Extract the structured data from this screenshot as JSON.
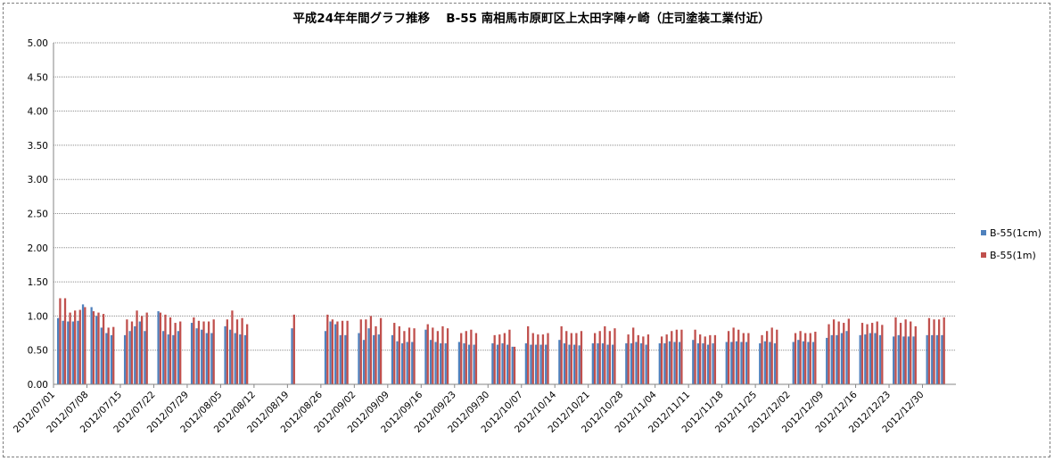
{
  "chart_data": {
    "type": "bar",
    "title": "平成24年年間グラフ推移　 B-55 南相馬市原町区上太田字陣ヶ崎（庄司塗装工業付近）",
    "xlabel": "",
    "ylabel": "",
    "ylim": [
      0,
      5
    ],
    "yticks": [
      "0.00",
      "0.50",
      "1.00",
      "1.50",
      "2.00",
      "2.50",
      "3.00",
      "3.50",
      "4.00",
      "4.50",
      "5.00"
    ],
    "grid": "horizontal dotted",
    "legend_position": "right",
    "x_tick_labels": [
      "2012/07/01",
      "2012/07/08",
      "2012/07/15",
      "2012/07/22",
      "2012/07/29",
      "2012/08/05",
      "2012/08/12",
      "2012/08/19",
      "2012/08/26",
      "2012/09/02",
      "2012/09/09",
      "2012/09/16",
      "2012/09/23",
      "2012/09/30",
      "2012/10/07",
      "2012/10/14",
      "2012/10/21",
      "2012/10/28",
      "2012/11/04",
      "2012/11/11",
      "2012/11/18",
      "2012/11/25",
      "2012/12/02",
      "2012/12/09",
      "2012/12/16",
      "2012/12/23",
      "2012/12/30"
    ],
    "weeks": [
      {
        "s1": [
          0.97,
          0.93,
          0.92,
          0.92,
          0.93,
          1.17
        ],
        "s2": [
          1.26,
          1.26,
          1.05,
          1.08,
          1.09,
          1.13
        ]
      },
      {
        "s1": [
          1.13,
          1.0,
          0.83,
          0.75,
          0.72,
          null
        ],
        "s2": [
          1.07,
          1.05,
          1.03,
          0.83,
          0.84,
          null
        ]
      },
      {
        "s1": [
          0.72,
          0.78,
          0.85,
          0.92,
          0.78,
          null
        ],
        "s2": [
          0.95,
          0.92,
          1.08,
          1.0,
          1.05,
          null
        ]
      },
      {
        "s1": [
          1.07,
          0.78,
          0.73,
          0.72,
          0.78,
          null
        ],
        "s2": [
          1.05,
          1.02,
          0.98,
          0.9,
          0.92,
          null
        ]
      },
      {
        "s1": [
          0.9,
          0.82,
          0.8,
          0.75,
          0.75,
          null
        ],
        "s2": [
          0.98,
          0.93,
          0.92,
          0.92,
          0.95,
          null
        ]
      },
      {
        "s1": [
          0.85,
          0.8,
          0.75,
          0.73,
          0.72,
          null
        ],
        "s2": [
          0.95,
          1.08,
          0.95,
          0.97,
          0.88,
          null
        ]
      },
      {
        "s1": [
          null,
          null,
          null,
          null,
          null,
          null
        ],
        "s2": [
          null,
          null,
          null,
          null,
          null,
          null
        ]
      },
      {
        "s1": [
          0.82,
          null,
          null,
          null,
          null,
          null
        ],
        "s2": [
          1.02,
          null,
          null,
          null,
          null,
          null
        ]
      },
      {
        "s1": [
          0.78,
          0.92,
          0.88,
          0.72,
          0.72,
          null
        ],
        "s2": [
          1.02,
          0.95,
          0.92,
          0.93,
          0.93,
          null
        ]
      },
      {
        "s1": [
          0.75,
          0.65,
          0.82,
          0.72,
          0.73,
          null
        ],
        "s2": [
          0.95,
          0.95,
          1.0,
          0.85,
          0.97,
          null
        ]
      },
      {
        "s1": [
          0.72,
          0.63,
          0.6,
          0.62,
          0.62,
          null
        ],
        "s2": [
          0.9,
          0.85,
          0.78,
          0.83,
          0.82,
          null
        ]
      },
      {
        "s1": [
          0.8,
          0.65,
          0.62,
          0.6,
          0.6,
          null
        ],
        "s2": [
          0.88,
          0.83,
          0.78,
          0.85,
          0.82,
          null
        ]
      },
      {
        "s1": [
          0.62,
          0.6,
          0.58,
          0.58,
          null,
          null
        ],
        "s2": [
          0.75,
          0.78,
          0.8,
          0.75,
          null,
          null
        ]
      },
      {
        "s1": [
          0.6,
          0.58,
          0.6,
          0.58,
          0.55,
          null
        ],
        "s2": [
          0.72,
          0.73,
          0.75,
          0.8,
          0.55,
          null
        ]
      },
      {
        "s1": [
          0.6,
          0.58,
          0.58,
          0.58,
          0.58,
          null
        ],
        "s2": [
          0.85,
          0.75,
          0.73,
          0.73,
          0.75,
          null
        ]
      },
      {
        "s1": [
          0.65,
          0.6,
          0.58,
          0.58,
          0.57,
          null
        ],
        "s2": [
          0.85,
          0.78,
          0.75,
          0.75,
          0.78,
          null
        ]
      },
      {
        "s1": [
          0.6,
          0.6,
          0.6,
          0.58,
          0.58,
          null
        ],
        "s2": [
          0.75,
          0.78,
          0.85,
          0.78,
          0.82,
          null
        ]
      },
      {
        "s1": [
          0.6,
          0.6,
          0.62,
          0.6,
          0.58,
          null
        ],
        "s2": [
          0.73,
          0.83,
          0.72,
          0.7,
          0.73,
          null
        ]
      },
      {
        "s1": [
          0.6,
          0.6,
          0.63,
          0.62,
          0.62,
          null
        ],
        "s2": [
          0.7,
          0.73,
          0.78,
          0.8,
          0.8,
          null
        ]
      },
      {
        "s1": [
          0.65,
          0.6,
          0.6,
          0.58,
          0.6,
          null
        ],
        "s2": [
          0.8,
          0.73,
          0.7,
          0.72,
          0.72,
          null
        ]
      },
      {
        "s1": [
          0.62,
          0.62,
          0.63,
          0.62,
          0.62,
          null
        ],
        "s2": [
          0.78,
          0.83,
          0.8,
          0.75,
          0.75,
          null
        ]
      },
      {
        "s1": [
          0.6,
          0.63,
          0.62,
          0.6,
          null,
          null
        ],
        "s2": [
          0.72,
          0.78,
          0.83,
          0.8,
          null,
          null
        ]
      },
      {
        "s1": [
          0.62,
          0.65,
          0.63,
          0.62,
          0.62,
          null
        ],
        "s2": [
          0.75,
          0.78,
          0.75,
          0.75,
          0.77,
          null
        ]
      },
      {
        "s1": [
          0.68,
          0.72,
          0.72,
          0.75,
          0.78,
          null
        ],
        "s2": [
          0.88,
          0.95,
          0.92,
          0.9,
          0.96,
          null
        ]
      },
      {
        "s1": [
          0.72,
          0.73,
          0.75,
          0.75,
          0.72,
          null
        ],
        "s2": [
          0.9,
          0.88,
          0.9,
          0.92,
          0.87,
          null
        ]
      },
      {
        "s1": [
          0.7,
          0.72,
          0.7,
          0.7,
          0.7,
          null
        ],
        "s2": [
          0.98,
          0.9,
          0.95,
          0.92,
          0.85,
          null
        ]
      },
      {
        "s1": [
          0.72,
          0.72,
          0.72,
          0.72,
          null,
          null
        ],
        "s2": [
          0.97,
          0.95,
          0.95,
          0.98,
          null,
          null
        ]
      }
    ],
    "series": [
      {
        "name": "B-55(1cm)",
        "color": "#4f81bd"
      },
      {
        "name": "B-55(1m)",
        "color": "#c0504d"
      }
    ]
  }
}
